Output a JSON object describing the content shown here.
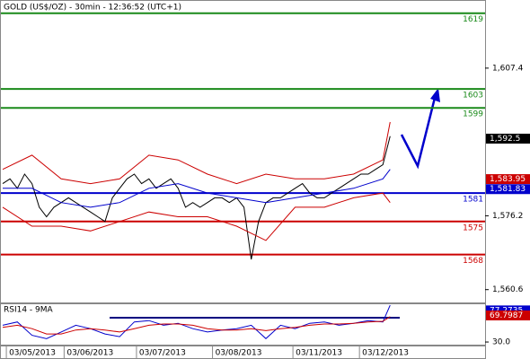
{
  "chart_data": [
    {
      "type": "line",
      "title": "GOLD (US$/OZ) - 30min - 12:36:52 (UTC+1)",
      "xlim": [
        0,
        65
      ],
      "ylim": [
        1557.7,
        1621.6
      ],
      "yticks": [
        {
          "value": 1607.4,
          "label": "1,607.4"
        },
        {
          "value": 1576.2,
          "label": "1,576.2"
        },
        {
          "value": 1560.6,
          "label": "1,560.6"
        }
      ],
      "series": [
        {
          "color": "#000000",
          "values": [
            1583,
            1584,
            1582,
            1585,
            1583,
            1578,
            1576,
            1578,
            1579,
            1580,
            1579,
            1578,
            1577,
            1576,
            1575,
            1580,
            1582,
            1584,
            1585,
            1583,
            1584,
            1582,
            1583,
            1584,
            1582,
            1578,
            1579,
            1578,
            1579,
            1580,
            1580,
            1579,
            1580,
            1578,
            1567,
            1575,
            1579,
            1580,
            1580,
            1581,
            1582,
            1583,
            1581,
            1580,
            1580,
            1581,
            1582,
            1583,
            1584,
            1585,
            1585,
            1586,
            1587,
            1593
          ]
        },
        {
          "color": "#cc0000",
          "x": [
            0,
            4,
            8,
            12,
            16,
            20,
            24,
            28,
            32,
            36,
            40,
            44,
            48,
            52,
            53
          ],
          "values": [
            1586,
            1589,
            1584,
            1583,
            1584,
            1589,
            1588,
            1585,
            1583,
            1585,
            1584,
            1584,
            1585,
            1588,
            1596
          ]
        },
        {
          "color": "#0000cc",
          "x": [
            0,
            4,
            8,
            12,
            16,
            20,
            24,
            28,
            32,
            36,
            40,
            44,
            48,
            52,
            53
          ],
          "values": [
            1582,
            1582,
            1579,
            1578,
            1579,
            1582,
            1583,
            1581,
            1580,
            1579,
            1580,
            1581,
            1582,
            1584,
            1586
          ]
        },
        {
          "color": "#cc0000",
          "x": [
            0,
            4,
            8,
            12,
            16,
            20,
            24,
            28,
            32,
            36,
            40,
            44,
            48,
            52,
            53
          ],
          "values": [
            1578,
            1574,
            1574,
            1573,
            1575,
            1577,
            1576,
            1576,
            1574,
            1571,
            1578,
            1578,
            1580,
            1581,
            1579
          ]
        }
      ],
      "levels": [
        {
          "value": 1619,
          "color": "#1a8a1a"
        },
        {
          "value": 1603,
          "color": "#1a8a1a"
        },
        {
          "value": 1599,
          "color": "#1a8a1a"
        },
        {
          "value": 1581,
          "color": "#0000cc"
        },
        {
          "value": 1575,
          "color": "#cc0000"
        },
        {
          "value": 1568,
          "color": "#cc0000"
        }
      ],
      "tags": [
        {
          "value": 1592.5,
          "label": "1,592.5",
          "color": "#000000"
        },
        {
          "value": 1583.95,
          "label": "1,583.95",
          "color": "#cc0000"
        },
        {
          "value": 1581.83,
          "label": "1,581.83",
          "color": "#0000cc"
        }
      ]
    },
    {
      "type": "line",
      "title": "RSI14 - 9MA",
      "xlim": [
        0,
        65
      ],
      "ylim": [
        24.7,
        86.5
      ],
      "yticks": [
        {
          "value": 30,
          "label": "30.0"
        }
      ],
      "xticks": [
        {
          "value": 0.5,
          "label": "03/05/2013"
        },
        {
          "value": 8.4,
          "label": "03/06/2013"
        },
        {
          "value": 18.3,
          "label": "03/07/2013"
        },
        {
          "value": 28.7,
          "label": "03/08/2013"
        },
        {
          "value": 39.7,
          "label": "03/11/2013"
        },
        {
          "value": 48.8,
          "label": "03/12/2013"
        }
      ],
      "series": [
        {
          "color": "#0000cc",
          "x": [
            0,
            2,
            4,
            6,
            8,
            10,
            12,
            14,
            16,
            18,
            20,
            22,
            24,
            26,
            28,
            30,
            32,
            34,
            36,
            38,
            40,
            42,
            44,
            46,
            48,
            50,
            52,
            53
          ],
          "values": [
            55,
            60,
            40,
            35,
            45,
            55,
            50,
            42,
            38,
            60,
            62,
            55,
            58,
            50,
            45,
            48,
            50,
            55,
            35,
            55,
            50,
            58,
            60,
            55,
            58,
            62,
            60,
            85
          ]
        },
        {
          "color": "#cc0000",
          "x": [
            0,
            2,
            4,
            6,
            8,
            10,
            12,
            14,
            16,
            18,
            20,
            22,
            24,
            26,
            28,
            30,
            32,
            34,
            36,
            38,
            40,
            42,
            44,
            46,
            48,
            50,
            52,
            53
          ],
          "values": [
            52,
            55,
            50,
            42,
            42,
            48,
            50,
            48,
            45,
            50,
            55,
            57,
            57,
            55,
            50,
            48,
            48,
            50,
            47,
            50,
            52,
            55,
            57,
            57,
            58,
            60,
            61,
            68
          ]
        }
      ],
      "tags": [
        {
          "value": 77.2735,
          "label": "77.2735",
          "color": "#0000cc"
        },
        {
          "value": 69.7987,
          "label": "69.7987",
          "color": "#cc0000"
        }
      ]
    }
  ]
}
